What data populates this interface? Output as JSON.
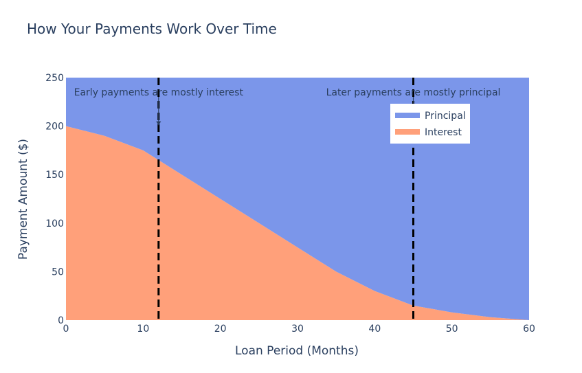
{
  "chart_data": {
    "type": "area",
    "title": "How Your Payments Work Over Time",
    "xlabel": "Loan Period (Months)",
    "ylabel": "Payment Amount ($)",
    "xlim": [
      0,
      60
    ],
    "ylim": [
      0,
      250
    ],
    "x_ticks": [
      0,
      10,
      20,
      30,
      40,
      50,
      60
    ],
    "y_ticks": [
      0,
      50,
      100,
      150,
      200,
      250
    ],
    "x": [
      0,
      5,
      10,
      15,
      20,
      25,
      30,
      35,
      40,
      45,
      50,
      55,
      60
    ],
    "stacked": true,
    "series": [
      {
        "name": "Interest",
        "color": "#ffa07a",
        "values": [
          200,
          190,
          175,
          150,
          125,
          100,
          75,
          50,
          30,
          15,
          8,
          3,
          0
        ]
      },
      {
        "name": "Principal",
        "color": "#7b96ea",
        "values": [
          50,
          60,
          75,
          100,
          125,
          150,
          175,
          200,
          220,
          235,
          242,
          247,
          250
        ]
      }
    ],
    "vlines": [
      {
        "x": 12,
        "style": "dashed",
        "color": "#000000"
      },
      {
        "x": 45,
        "style": "dashed",
        "color": "#000000"
      }
    ],
    "annotations": [
      {
        "text": "Early payments are mostly interest",
        "x": 12,
        "y": 250,
        "arrow_to": [
          12,
          200
        ]
      },
      {
        "text": "Later payments are mostly principal",
        "x": 45,
        "y": 250,
        "arrow_to": [
          45,
          200
        ]
      }
    ],
    "legend": {
      "position": "top-right",
      "items": [
        "Principal",
        "Interest"
      ]
    },
    "grid": false
  }
}
